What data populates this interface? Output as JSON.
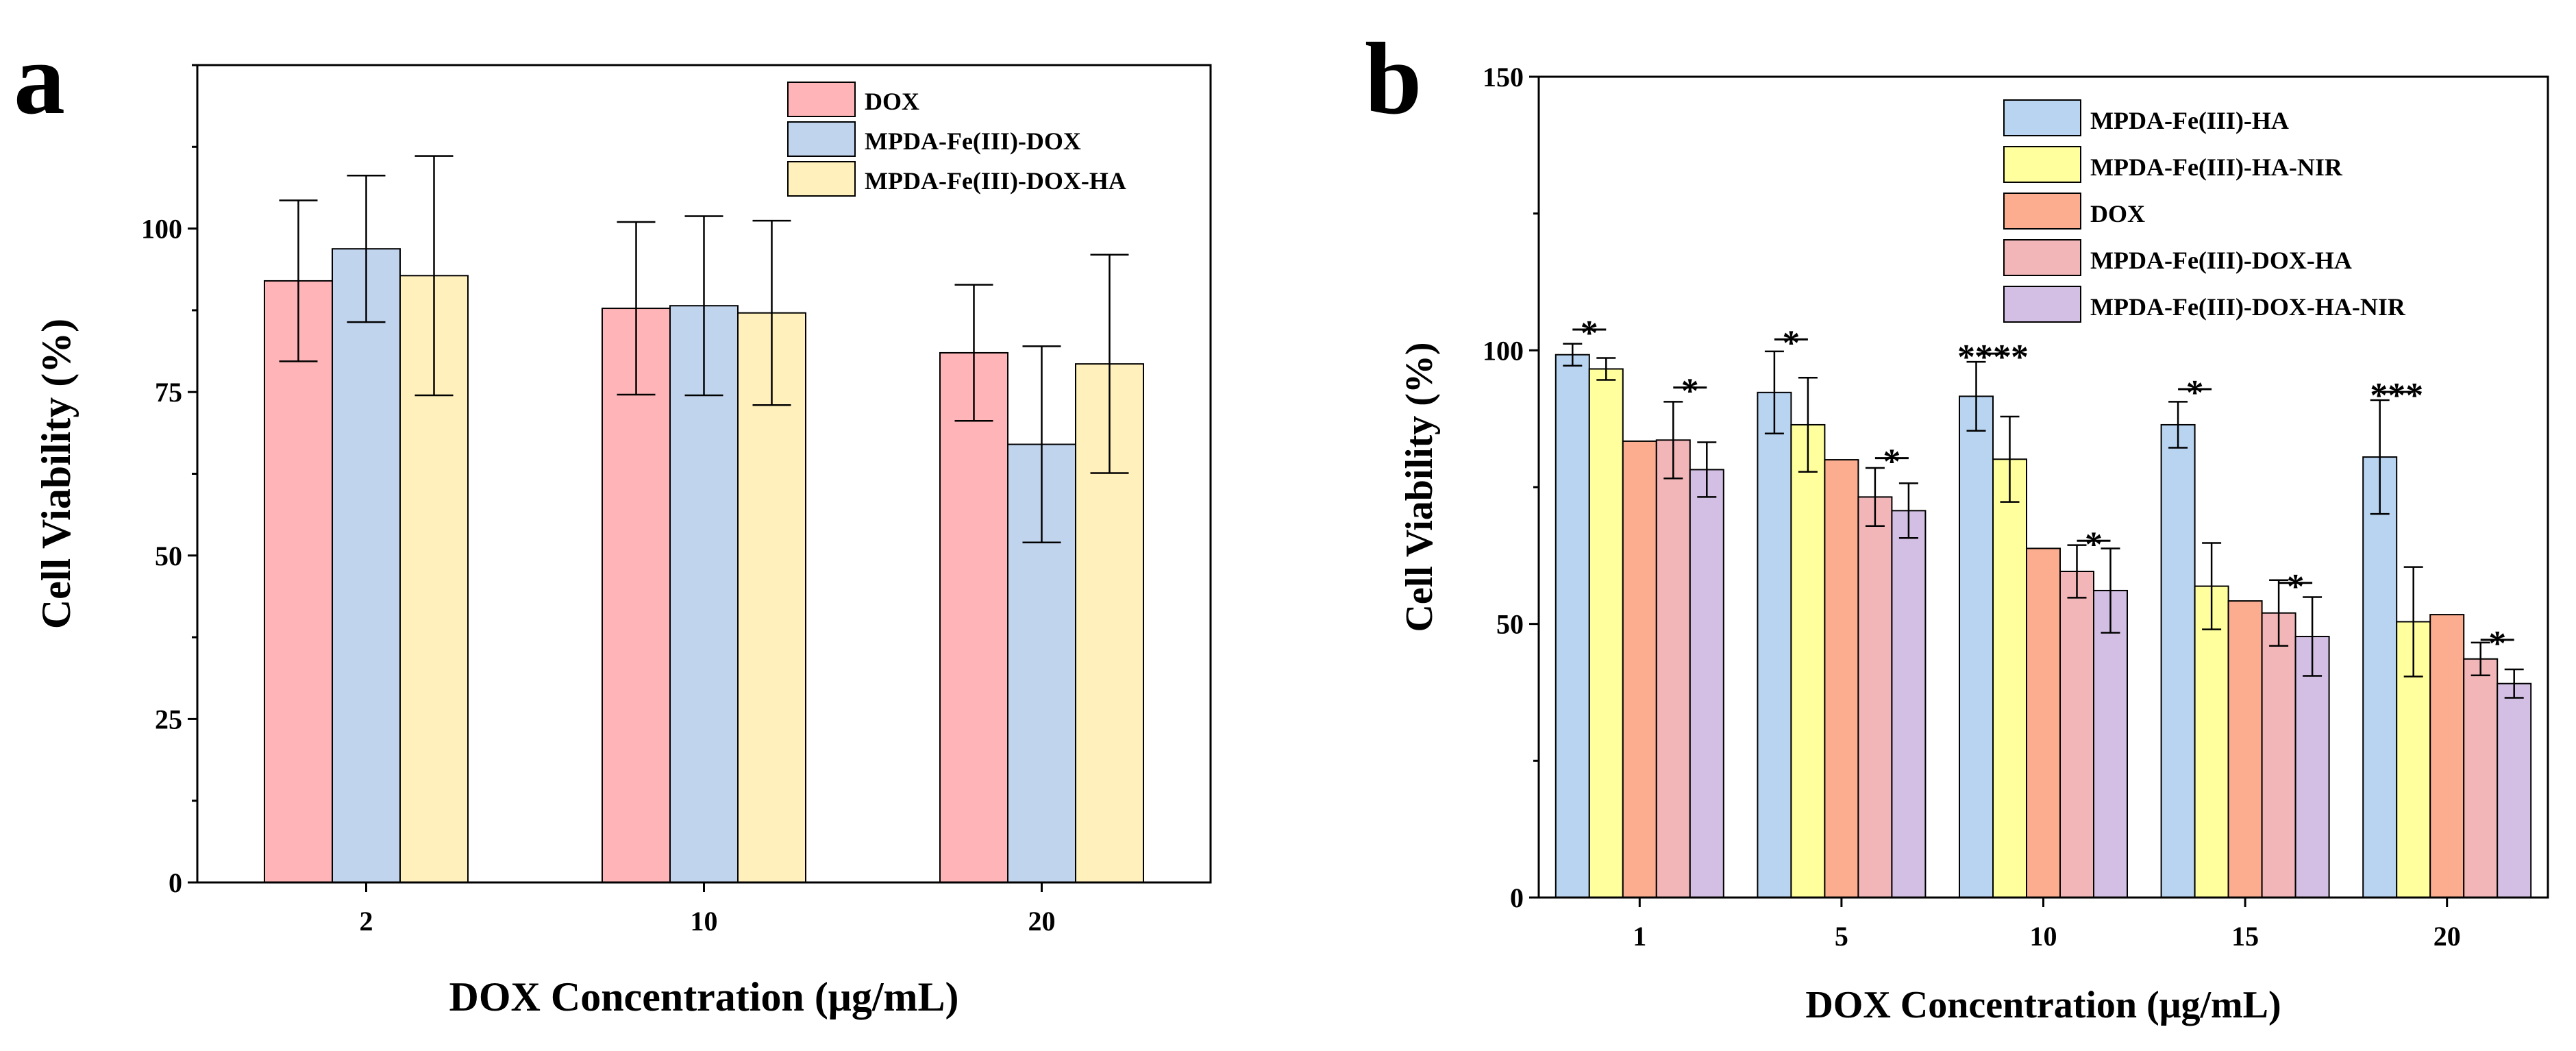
{
  "chart_data": [
    {
      "type": "bar",
      "panel_label": "a",
      "title": "",
      "xlabel": "DOX Concentration (μg/mL)",
      "ylabel": "Cell Viability (%)",
      "ylim": [
        0,
        125
      ],
      "yticks": [
        0,
        25,
        50,
        75,
        100
      ],
      "categories": [
        "2",
        "10",
        "20"
      ],
      "legend_position": "top-right",
      "grid": false,
      "series": [
        {
          "name": "DOX",
          "color": "#ffb5b8",
          "values": [
            92,
            87.8,
            81
          ],
          "errors": [
            12.3,
            13.2,
            10.4
          ]
        },
        {
          "name": "MPDA-Fe(III)-DOX",
          "color": "#c1d4ee",
          "values": [
            96.9,
            88.2,
            67
          ],
          "errors": [
            11.2,
            13.7,
            15
          ]
        },
        {
          "name": "MPDA-Fe(III)-DOX-HA",
          "color": "#fff0bc",
          "values": [
            92.8,
            87.1,
            79.3
          ],
          "errors": [
            18.3,
            14.1,
            16.7
          ]
        }
      ]
    },
    {
      "type": "bar",
      "panel_label": "b",
      "title": "",
      "xlabel": "DOX Concentration (μg/mL)",
      "ylabel": "Cell Viability (%)",
      "ylim": [
        0,
        150
      ],
      "yticks": [
        0,
        50,
        100,
        150
      ],
      "categories": [
        "1",
        "5",
        "10",
        "15",
        "20"
      ],
      "legend_position": "top-right",
      "grid": false,
      "series": [
        {
          "name": "MPDA-Fe(III)-HA",
          "color": "#b8d4f1",
          "values": [
            99.2,
            92.3,
            91.6,
            86.4,
            80.5
          ],
          "errors": [
            2,
            7.5,
            6.3,
            4.2,
            10.4
          ]
        },
        {
          "name": "MPDA-Fe(III)-HA-NIR",
          "color": "#ffff9e",
          "values": [
            96.6,
            86.4,
            80.1,
            56.9,
            50.4
          ],
          "errors": [
            2,
            8.6,
            7.8,
            7.9,
            10
          ]
        },
        {
          "name": "DOX",
          "color": "#fcad90",
          "values": [
            83.4,
            80,
            63.8,
            54.2,
            51.7
          ],
          "errors": [
            0,
            0,
            0,
            0,
            0
          ]
        },
        {
          "name": "MPDA-Fe(III)-DOX-HA",
          "color": "#f2b6b8",
          "values": [
            83.6,
            73.2,
            59.6,
            52,
            43.6
          ],
          "errors": [
            7,
            5.3,
            4.8,
            6,
            3
          ]
        },
        {
          "name": "MPDA-Fe(III)-DOX-HA-NIR",
          "color": "#d3bfe4",
          "values": [
            78.2,
            70.7,
            56.1,
            47.7,
            39.1
          ],
          "errors": [
            5,
            5,
            7.7,
            7.2,
            2.6
          ]
        }
      ],
      "significance": [
        {
          "group": 0,
          "from": 0,
          "to": 1,
          "label": "*",
          "y": 103.8
        },
        {
          "group": 0,
          "from": 3,
          "to": 4,
          "label": "*",
          "y": 93.2
        },
        {
          "group": 1,
          "from": 0,
          "to": 1,
          "label": "*",
          "y": 102
        },
        {
          "group": 1,
          "from": 3,
          "to": 4,
          "label": "*",
          "y": 80.3
        },
        {
          "group": 2,
          "from": 0,
          "to": 1,
          "label": "****",
          "y": 99.4
        },
        {
          "group": 2,
          "from": 3,
          "to": 4,
          "label": "*",
          "y": 65.2
        },
        {
          "group": 3,
          "from": 0,
          "to": 1,
          "label": "*",
          "y": 92.9
        },
        {
          "group": 3,
          "from": 3,
          "to": 4,
          "label": "*",
          "y": 57.5
        },
        {
          "group": 4,
          "from": 0,
          "to": 1,
          "label": "***",
          "y": 92.4
        },
        {
          "group": 4,
          "from": 3,
          "to": 4,
          "label": "*",
          "y": 47.1
        }
      ]
    }
  ]
}
